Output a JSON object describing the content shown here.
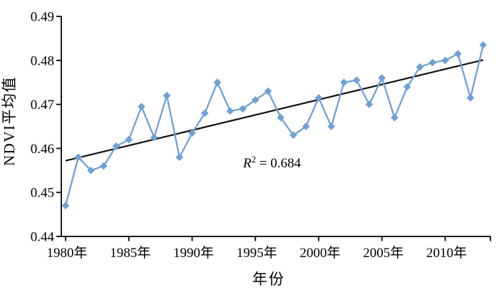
{
  "chart_data": {
    "type": "line",
    "title": "",
    "xlabel": "年份",
    "ylabel": "NDVI平均值",
    "x_tick_suffix": "年",
    "categories": [
      1980,
      1981,
      1982,
      1983,
      1984,
      1985,
      1986,
      1987,
      1988,
      1989,
      1990,
      1991,
      1992,
      1993,
      1994,
      1995,
      1996,
      1997,
      1998,
      1999,
      2000,
      2001,
      2002,
      2003,
      2004,
      2005,
      2006,
      2007,
      2008,
      2009,
      2010,
      2011,
      2012,
      2013
    ],
    "series": [
      {
        "name": "NDVI平均值",
        "marker": "diamond",
        "color": "#6FA0D6",
        "values": [
          0.447,
          0.458,
          0.455,
          0.456,
          0.4605,
          0.462,
          0.4695,
          0.4625,
          0.472,
          0.458,
          0.4635,
          0.468,
          0.475,
          0.4685,
          0.469,
          0.471,
          0.473,
          0.467,
          0.463,
          0.465,
          0.4715,
          0.465,
          0.475,
          0.4755,
          0.47,
          0.476,
          0.467,
          0.474,
          0.4785,
          0.4795,
          0.48,
          0.4815,
          0.4715,
          0.4835
        ]
      }
    ],
    "trendline": {
      "color": "#111111",
      "x_start": 1980,
      "x_end": 2013,
      "value_start": 0.4572,
      "value_end": 0.4801
    },
    "annotation": {
      "text": "R² = 0.684",
      "variable": "R",
      "superscript": "2",
      "equals_value": " = 0.684"
    },
    "ylim": [
      0.44,
      0.49
    ],
    "yticks": [
      0.44,
      0.45,
      0.46,
      0.47,
      0.48,
      0.49
    ],
    "xticks": [
      1980,
      1985,
      1990,
      1995,
      2000,
      2005,
      2010
    ],
    "grid": false,
    "legend": "none",
    "axis_color": "#000000",
    "background": "#ffffff"
  }
}
